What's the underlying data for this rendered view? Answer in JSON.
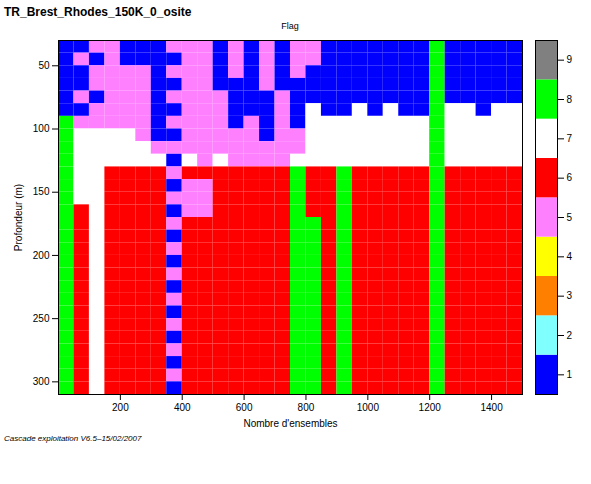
{
  "chart_data": {
    "type": "heatmap",
    "title": "TR_Brest_Rhodes_150K_0_osite",
    "subtitle": "Flag",
    "caption": "Cascade exploitation V6.5–15/02/2007",
    "x_label": "Nombre d'ensembles",
    "y_label": "Profondeur (m)",
    "xlim": [
      0,
      1500
    ],
    "xticks": [
      200,
      400,
      600,
      800,
      1000,
      1200,
      1400
    ],
    "ylim": [
      30,
      310
    ],
    "yticks": [
      50,
      100,
      150,
      200,
      250,
      300
    ],
    "x_bins": [
      0,
      50,
      100,
      150,
      200,
      250,
      300,
      350,
      400,
      450,
      500,
      550,
      600,
      650,
      700,
      750,
      800,
      850,
      900,
      950,
      1000,
      1050,
      1100,
      1150,
      1200,
      1250,
      1300,
      1350,
      1400,
      1450,
      1500
    ],
    "y_bins": [
      30,
      40,
      50,
      60,
      70,
      80,
      90,
      100,
      110,
      120,
      130,
      140,
      150,
      160,
      170,
      180,
      190,
      200,
      210,
      220,
      230,
      240,
      250,
      260,
      270,
      280,
      290,
      300,
      310
    ],
    "values": [
      [
        1,
        1,
        1,
        1,
        1,
        1,
        8,
        8,
        8,
        8,
        8,
        8,
        8,
        8,
        8,
        8,
        8,
        8,
        8,
        8,
        8,
        8,
        8,
        8,
        8,
        8,
        8,
        8
      ],
      [
        1,
        5,
        1,
        1,
        5,
        1,
        5,
        7,
        7,
        7,
        7,
        7,
        7,
        6,
        6,
        6,
        6,
        6,
        6,
        6,
        6,
        6,
        6,
        6,
        6,
        6,
        6,
        6
      ],
      [
        5,
        1,
        5,
        5,
        1,
        5,
        5,
        7,
        7,
        7,
        7,
        7,
        7,
        7,
        7,
        7,
        7,
        7,
        7,
        7,
        7,
        7,
        7,
        7,
        7,
        7,
        7,
        7
      ],
      [
        5,
        5,
        5,
        5,
        5,
        5,
        5,
        7,
        7,
        7,
        6,
        6,
        6,
        6,
        6,
        6,
        6,
        6,
        6,
        6,
        6,
        6,
        6,
        6,
        6,
        6,
        6,
        6
      ],
      [
        1,
        1,
        5,
        5,
        5,
        5,
        5,
        7,
        7,
        7,
        6,
        6,
        6,
        6,
        6,
        6,
        6,
        6,
        6,
        6,
        6,
        6,
        6,
        6,
        6,
        6,
        6,
        6
      ],
      [
        1,
        1,
        5,
        5,
        5,
        5,
        5,
        5,
        7,
        7,
        6,
        6,
        6,
        6,
        6,
        6,
        6,
        6,
        6,
        6,
        6,
        6,
        6,
        6,
        6,
        6,
        6,
        6
      ],
      [
        1,
        1,
        1,
        1,
        1,
        1,
        1,
        1,
        5,
        7,
        6,
        6,
        6,
        6,
        6,
        6,
        6,
        6,
        6,
        6,
        6,
        6,
        6,
        6,
        6,
        6,
        6,
        6
      ],
      [
        5,
        1,
        5,
        1,
        5,
        1,
        5,
        1,
        5,
        1,
        5,
        1,
        5,
        1,
        5,
        1,
        5,
        1,
        5,
        1,
        5,
        1,
        5,
        1,
        5,
        1,
        5,
        1
      ],
      [
        5,
        5,
        5,
        5,
        5,
        5,
        5,
        5,
        5,
        7,
        6,
        5,
        5,
        5,
        6,
        6,
        6,
        6,
        6,
        6,
        6,
        6,
        6,
        6,
        6,
        6,
        6,
        6
      ],
      [
        5,
        5,
        5,
        5,
        5,
        5,
        5,
        5,
        5,
        5,
        6,
        5,
        5,
        5,
        6,
        6,
        6,
        6,
        6,
        6,
        6,
        6,
        6,
        6,
        6,
        6,
        6,
        6
      ],
      [
        1,
        1,
        1,
        1,
        5,
        5,
        5,
        5,
        5,
        7,
        6,
        6,
        6,
        6,
        6,
        6,
        6,
        6,
        6,
        6,
        6,
        6,
        6,
        6,
        6,
        6,
        6,
        6
      ],
      [
        5,
        5,
        5,
        1,
        1,
        1,
        1,
        5,
        5,
        5,
        6,
        6,
        6,
        6,
        6,
        6,
        6,
        6,
        6,
        6,
        6,
        6,
        6,
        6,
        6,
        6,
        6,
        6
      ],
      [
        1,
        1,
        1,
        1,
        1,
        1,
        5,
        5,
        5,
        5,
        6,
        6,
        6,
        6,
        6,
        6,
        6,
        6,
        6,
        6,
        6,
        6,
        6,
        6,
        6,
        6,
        6,
        6
      ],
      [
        5,
        5,
        5,
        5,
        1,
        1,
        1,
        1,
        5,
        5,
        6,
        6,
        6,
        6,
        6,
        6,
        6,
        6,
        6,
        6,
        6,
        6,
        6,
        6,
        6,
        6,
        6,
        6
      ],
      [
        1,
        1,
        1,
        1,
        5,
        5,
        5,
        5,
        5,
        5,
        6,
        6,
        6,
        6,
        6,
        6,
        6,
        6,
        6,
        6,
        6,
        6,
        6,
        6,
        6,
        6,
        6,
        6
      ],
      [
        5,
        5,
        5,
        1,
        1,
        1,
        1,
        5,
        5,
        7,
        8,
        8,
        8,
        8,
        8,
        8,
        8,
        8,
        8,
        8,
        8,
        8,
        8,
        8,
        8,
        8,
        8,
        8
      ],
      [
        5,
        5,
        1,
        1,
        1,
        7,
        7,
        7,
        7,
        7,
        6,
        6,
        6,
        6,
        8,
        8,
        8,
        8,
        8,
        8,
        8,
        8,
        8,
        8,
        8,
        8,
        8,
        8
      ],
      [
        1,
        1,
        1,
        1,
        1,
        1,
        7,
        7,
        7,
        7,
        6,
        6,
        6,
        6,
        6,
        6,
        6,
        6,
        6,
        6,
        6,
        6,
        6,
        6,
        6,
        6,
        6,
        6
      ],
      [
        1,
        1,
        1,
        1,
        1,
        1,
        7,
        7,
        7,
        7,
        8,
        8,
        8,
        8,
        8,
        8,
        8,
        8,
        8,
        8,
        8,
        8,
        8,
        8,
        8,
        8,
        8,
        8
      ],
      [
        1,
        1,
        1,
        1,
        1,
        7,
        7,
        7,
        7,
        7,
        6,
        6,
        6,
        6,
        6,
        6,
        6,
        6,
        6,
        6,
        6,
        6,
        6,
        6,
        6,
        6,
        6,
        6
      ],
      [
        1,
        1,
        1,
        1,
        1,
        1,
        7,
        7,
        7,
        7,
        6,
        6,
        6,
        6,
        6,
        6,
        6,
        6,
        6,
        6,
        6,
        6,
        6,
        6,
        6,
        6,
        6,
        6
      ],
      [
        1,
        1,
        1,
        1,
        1,
        7,
        7,
        7,
        7,
        7,
        6,
        6,
        6,
        6,
        6,
        6,
        6,
        6,
        6,
        6,
        6,
        6,
        6,
        6,
        6,
        6,
        6,
        6
      ],
      [
        1,
        1,
        1,
        1,
        1,
        1,
        7,
        7,
        7,
        7,
        6,
        6,
        6,
        6,
        6,
        6,
        6,
        6,
        6,
        6,
        6,
        6,
        6,
        6,
        6,
        6,
        6,
        6
      ],
      [
        1,
        1,
        1,
        1,
        1,
        1,
        7,
        7,
        7,
        7,
        6,
        6,
        6,
        6,
        6,
        6,
        6,
        6,
        6,
        6,
        6,
        6,
        6,
        6,
        6,
        6,
        6,
        6
      ],
      [
        8,
        8,
        8,
        8,
        8,
        8,
        8,
        8,
        8,
        8,
        8,
        8,
        8,
        8,
        8,
        8,
        8,
        8,
        8,
        8,
        8,
        8,
        8,
        8,
        8,
        8,
        8,
        8
      ],
      [
        1,
        1,
        1,
        1,
        1,
        7,
        7,
        7,
        7,
        7,
        6,
        6,
        6,
        6,
        6,
        6,
        6,
        6,
        6,
        6,
        6,
        6,
        6,
        6,
        6,
        6,
        6,
        6
      ],
      [
        1,
        1,
        1,
        1,
        1,
        7,
        7,
        7,
        7,
        7,
        6,
        6,
        6,
        6,
        6,
        6,
        6,
        6,
        6,
        6,
        6,
        6,
        6,
        6,
        6,
        6,
        6,
        6
      ],
      [
        1,
        1,
        1,
        1,
        1,
        1,
        7,
        7,
        7,
        7,
        6,
        6,
        6,
        6,
        6,
        6,
        6,
        6,
        6,
        6,
        6,
        6,
        6,
        6,
        6,
        6,
        6,
        6
      ],
      [
        1,
        1,
        1,
        1,
        1,
        7,
        7,
        7,
        7,
        7,
        6,
        6,
        6,
        6,
        6,
        6,
        6,
        6,
        6,
        6,
        6,
        6,
        6,
        6,
        6,
        6,
        6,
        6
      ],
      [
        1,
        1,
        1,
        1,
        1,
        7,
        7,
        7,
        7,
        7,
        6,
        6,
        6,
        6,
        6,
        6,
        6,
        6,
        6,
        6,
        6,
        6,
        6,
        6,
        6,
        6,
        6,
        6
      ]
    ],
    "colorbar": {
      "range": [
        0.5,
        9.5
      ],
      "ticks": [
        1,
        2,
        3,
        4,
        5,
        6,
        7,
        8,
        9
      ],
      "colors": [
        "#0000ff",
        "#80ffff",
        "#ff8000",
        "#ffff00",
        "#ff80ff",
        "#ff0000",
        "#ffffff",
        "#00ff00",
        "#808080"
      ]
    }
  }
}
